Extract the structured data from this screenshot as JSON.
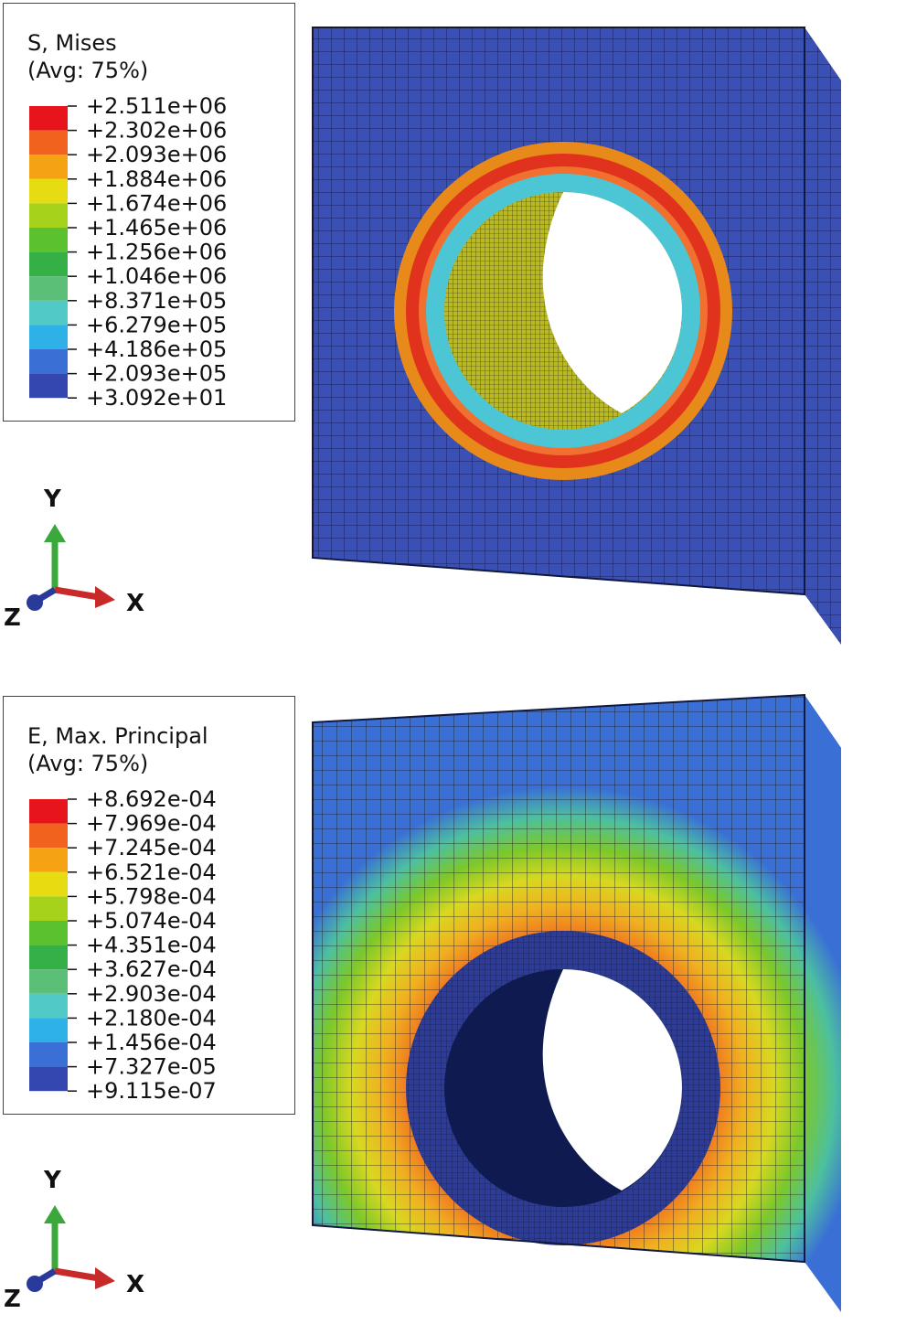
{
  "plots": [
    {
      "legend_title": "S, Mises",
      "legend_subtitle": "(Avg: 75%)",
      "legend_values": [
        "+2.511e+06",
        "+2.302e+06",
        "+2.093e+06",
        "+1.884e+06",
        "+1.674e+06",
        "+1.465e+06",
        "+1.256e+06",
        "+1.046e+06",
        "+8.371e+05",
        "+6.279e+05",
        "+4.186e+05",
        "+2.093e+05",
        "+3.092e+01"
      ],
      "legend_colors": [
        "#e8141c",
        "#f0621e",
        "#f5a313",
        "#e7dc12",
        "#a6d21b",
        "#5cc12f",
        "#34b046",
        "#5bbf78",
        "#51c9c6",
        "#2eb1e6",
        "#3a6fd6",
        "#3446b0"
      ]
    },
    {
      "legend_title": "E, Max. Principal",
      "legend_subtitle": "(Avg: 75%)",
      "legend_values": [
        "+8.692e-04",
        "+7.969e-04",
        "+7.245e-04",
        "+6.521e-04",
        "+5.798e-04",
        "+5.074e-04",
        "+4.351e-04",
        "+3.627e-04",
        "+2.903e-04",
        "+2.180e-04",
        "+1.456e-04",
        "+7.327e-05",
        "+9.115e-07"
      ],
      "legend_colors": [
        "#e8141c",
        "#f0621e",
        "#f5a313",
        "#e7dc12",
        "#a6d21b",
        "#5cc12f",
        "#34b046",
        "#5bbf78",
        "#51c9c6",
        "#2eb1e6",
        "#3a6fd6",
        "#3446b0"
      ]
    }
  ],
  "triad": {
    "y": "Y",
    "x": "X",
    "z": "Z"
  }
}
